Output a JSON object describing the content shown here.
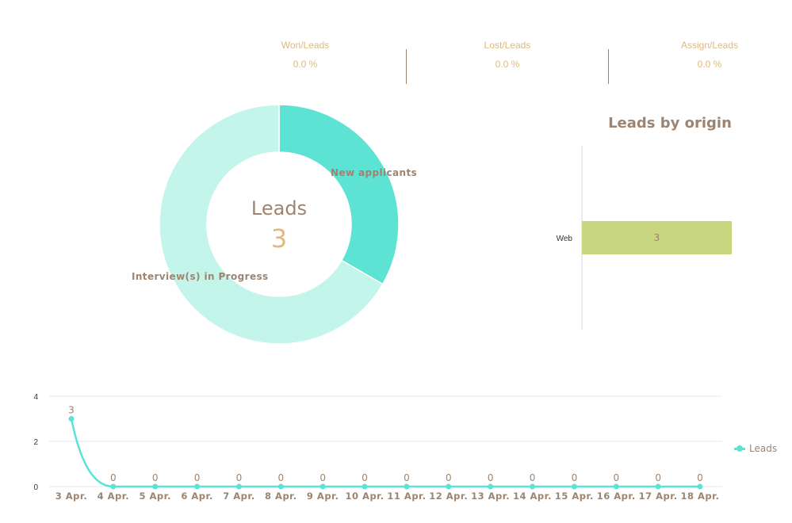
{
  "kpis": [
    {
      "label": "Won/Leads",
      "value": "0.0 %"
    },
    {
      "label": "Lost/Leads",
      "value": "0.0 %"
    },
    {
      "label": "Assign/Leads",
      "value": "0.0 %"
    }
  ],
  "colors": {
    "accent_gold": "#dfb97d",
    "text_brown": "#9d8470",
    "teal": "#5ce3d4",
    "teal_light": "#c4f5ea",
    "bar_green": "#c7d67f"
  },
  "chart_data": [
    {
      "type": "pie",
      "title": "Leads",
      "center_value": "3",
      "slices": [
        {
          "label": "New applicants",
          "value": 1,
          "color": "#5ce3d4"
        },
        {
          "label": "Interview(s) in Progress",
          "value": 2,
          "color": "#c4f5ea"
        }
      ]
    },
    {
      "type": "bar",
      "title": "Leads by origin",
      "orientation": "horizontal",
      "categories": [
        "Web"
      ],
      "values": [
        3
      ],
      "xlim": [
        0,
        3
      ]
    },
    {
      "type": "line",
      "x": [
        "3 Apr.",
        "4 Apr.",
        "5 Apr.",
        "6 Apr.",
        "7 Apr.",
        "8 Apr.",
        "9 Apr.",
        "10 Apr.",
        "11 Apr.",
        "12 Apr.",
        "13 Apr.",
        "14 Apr.",
        "15 Apr.",
        "16 Apr.",
        "17 Apr.",
        "18 Apr."
      ],
      "series": [
        {
          "name": "Leads",
          "values": [
            3,
            0,
            0,
            0,
            0,
            0,
            0,
            0,
            0,
            0,
            0,
            0,
            0,
            0,
            0,
            0
          ]
        }
      ],
      "ylim": [
        0,
        4
      ],
      "yticks": [
        "0",
        "2",
        "4"
      ],
      "grid": true,
      "legend": "right"
    }
  ]
}
